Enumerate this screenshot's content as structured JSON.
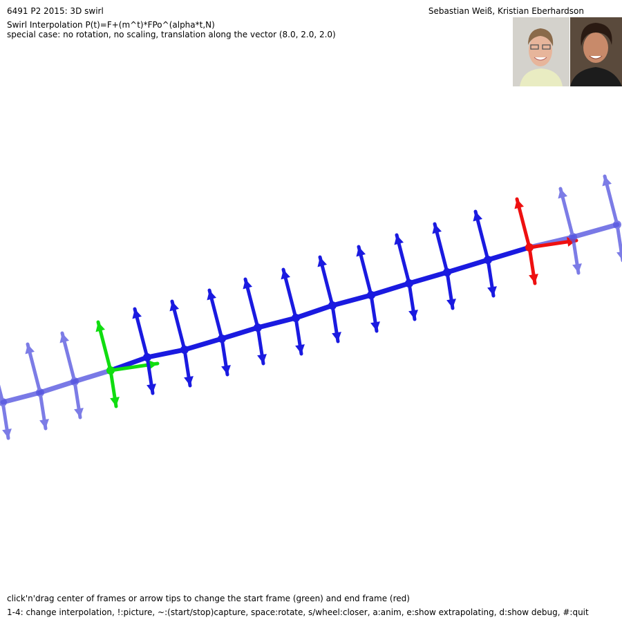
{
  "header": {
    "title": "6491 P2 2015: 3D swirl",
    "authors": "Sebastian Weiß, Kristian Eberhardson",
    "formula": "Swirl Interpolation P(t)=F+(m^t)*FPo^(alpha*t,N)",
    "special_case": "special case: no rotation, no scaling, translation along the vector (8.0, 2.0, 2.0)"
  },
  "footer": {
    "help_drag": "click'n'drag center of frames or arrow tips to change the start frame (green) and end frame (red)",
    "help_keys": "1-4: change interpolation, !:picture, ~:(start/stop)capture, space:rotate, s/wheel:closer, a:anim, e:show extrapolating, d:show debug, #:quit"
  },
  "scene": {
    "colors": {
      "start_frame": "#10dd10",
      "end_frame": "#ee1010",
      "interpolated": "#1a1ae0",
      "extrapolated": "#5858e0"
    },
    "legend": {
      "start_frame": "green",
      "end_frame": "red"
    }
  }
}
